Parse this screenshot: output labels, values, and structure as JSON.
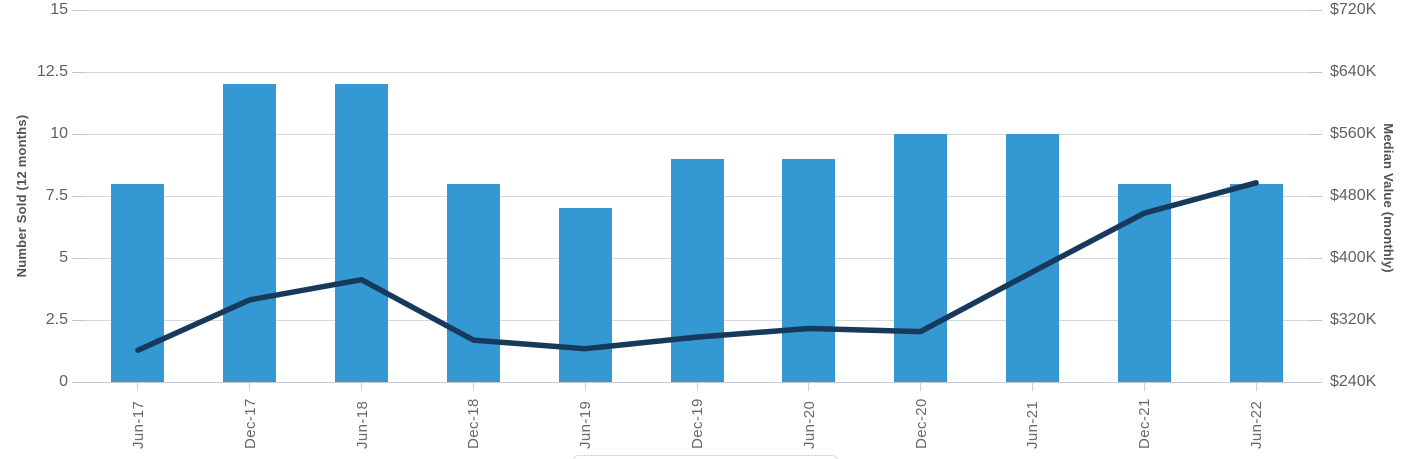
{
  "chart_data": {
    "type": "bar",
    "categories": [
      "Jun-17",
      "Dec-17",
      "Jun-18",
      "Dec-18",
      "Jun-19",
      "Dec-19",
      "Jun-20",
      "Dec-20",
      "Jun-21",
      "Dec-21",
      "Jun-22"
    ],
    "series": [
      {
        "name": "Number Sold (12 months)",
        "type": "bar",
        "axis": "left",
        "values": [
          8,
          12,
          12,
          8,
          7,
          9,
          9,
          10,
          10,
          8,
          8
        ]
      },
      {
        "name": "Median Value (monthly)",
        "type": "line",
        "axis": "right",
        "values_usd_k": [
          281,
          346,
          372,
          294,
          283,
          298,
          309,
          305,
          382,
          458,
          497
        ]
      }
    ],
    "left_axis": {
      "label": "Number Sold (12 months)",
      "tick_labels": [
        "15",
        "12.5",
        "10",
        "7.5",
        "5",
        "2.5",
        "0"
      ],
      "tick_values": [
        15,
        12.5,
        10,
        7.5,
        5,
        2.5,
        0
      ],
      "min": 0,
      "max": 15
    },
    "right_axis": {
      "label": "Median Value (monthly)",
      "tick_labels": [
        "$720K",
        "$640K",
        "$560K",
        "$480K",
        "$400K",
        "$320K",
        "$240K"
      ],
      "tick_values_usd_k": [
        720,
        640,
        560,
        480,
        400,
        320,
        240
      ],
      "min_usd_k": 240,
      "max_usd_k": 720
    },
    "grid": true,
    "legend": "legend box cut off at bottom edge of image",
    "title": ""
  },
  "colors": {
    "bar": "#3498d3",
    "line": "#17395c",
    "gridline": "#d6d9da",
    "baseline": "#c7cbce",
    "tick_text": "#5d6165",
    "x_label_text": "#66696d",
    "axis_title_text": "#505459"
  }
}
